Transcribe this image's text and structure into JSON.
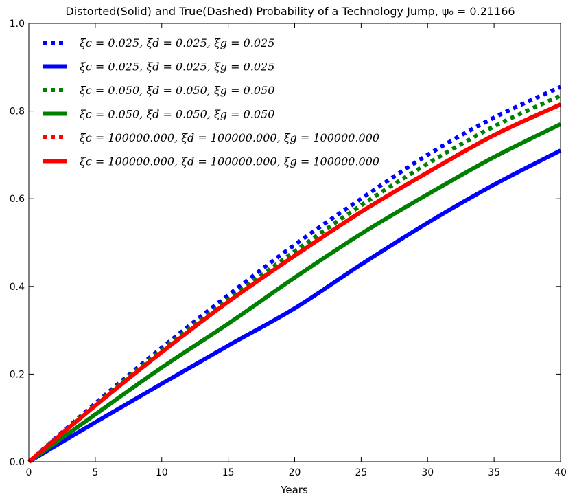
{
  "chart_data": {
    "type": "line",
    "title": "Distorted(Solid) and True(Dashed) Probability of a Technology Jump, ψ₀ = 0.21166",
    "xlabel": "Years",
    "ylabel": "",
    "xlim": [
      0,
      40
    ],
    "ylim": [
      0,
      1
    ],
    "xticks": [
      "0",
      "5",
      "10",
      "15",
      "20",
      "25",
      "30",
      "35",
      "40"
    ],
    "yticks": [
      "0.0",
      "0.2",
      "0.4",
      "0.6",
      "0.8",
      "1.0"
    ],
    "grid": false,
    "legend_position": "top-left",
    "x": [
      0,
      5,
      10,
      15,
      20,
      25,
      30,
      35,
      40
    ],
    "series": [
      {
        "name": "ξc = 0.025, ξd = 0.025, ξg = 0.025",
        "style": "dotted",
        "color": "#0000ff",
        "values": [
          0.0,
          0.133,
          0.26,
          0.38,
          0.495,
          0.6,
          0.7,
          0.785,
          0.855
        ]
      },
      {
        "name": "ξc = 0.025, ξd = 0.025, ξg = 0.025",
        "style": "solid",
        "color": "#0000ff",
        "values": [
          0.0,
          0.09,
          0.178,
          0.265,
          0.35,
          0.45,
          0.545,
          0.632,
          0.71
        ]
      },
      {
        "name": "ξc = 0.050, ξd = 0.050, ξg = 0.050",
        "style": "dotted",
        "color": "#008000",
        "values": [
          0.0,
          0.13,
          0.255,
          0.37,
          0.48,
          0.585,
          0.68,
          0.765,
          0.835
        ]
      },
      {
        "name": "ξc = 0.050, ξd = 0.050, ξg = 0.050",
        "style": "solid",
        "color": "#008000",
        "values": [
          0.0,
          0.108,
          0.215,
          0.315,
          0.42,
          0.52,
          0.61,
          0.695,
          0.77
        ]
      },
      {
        "name": "ξc = 100000.000, ξd = 100000.000, ξg = 100000.000",
        "style": "dotted",
        "color": "#ff0000",
        "values": [
          0.0,
          0.128,
          0.25,
          0.365,
          0.47,
          0.57,
          0.66,
          0.745,
          0.815
        ]
      },
      {
        "name": "ξc = 100000.000, ξd = 100000.000, ξg = 100000.000",
        "style": "solid",
        "color": "#ff0000",
        "values": [
          0.0,
          0.128,
          0.25,
          0.365,
          0.47,
          0.57,
          0.66,
          0.745,
          0.815
        ]
      }
    ]
  }
}
